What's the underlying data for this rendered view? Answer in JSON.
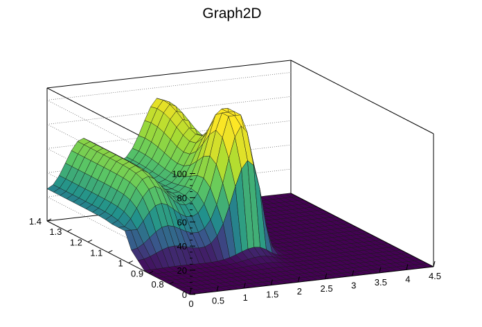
{
  "chart_data": {
    "type": "surface",
    "title": "Graph2D",
    "xlabel": "",
    "ylabel": "",
    "zlabel": "",
    "xlim": [
      0,
      4.5
    ],
    "ylim": [
      0.7,
      1.4
    ],
    "zlim": [
      0,
      110
    ],
    "x_ticks": [
      "0",
      "0.5",
      "1",
      "1.5",
      "2",
      "2.5",
      "3",
      "3.5",
      "4",
      "4.5"
    ],
    "y_ticks": [
      "0.8",
      "0.9",
      "1",
      "1.1",
      "1.2",
      "1.3",
      "1.4"
    ],
    "z_ticks": [
      "0",
      "20",
      "40",
      "60",
      "80",
      "100"
    ],
    "colormap": "viridis",
    "grid": true,
    "description_values": {
      "background_level": 0,
      "left_ridge_peak": 72,
      "central_plateau": 65,
      "right_ridge_peak": 105,
      "front_bump_peak": 88,
      "left_edge_level": 25
    }
  },
  "colors": {
    "background": "#ffffff",
    "frame_line": "#000000",
    "grid_line": "#555555",
    "mesh_line": "#1a1a1a"
  }
}
